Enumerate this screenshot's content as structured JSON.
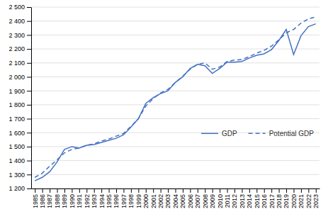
{
  "chart_data": {
    "type": "line",
    "x": [
      1985,
      1986,
      1987,
      1988,
      1989,
      1990,
      1991,
      1992,
      1993,
      1994,
      1995,
      1996,
      1997,
      1998,
      1999,
      2000,
      2001,
      2002,
      2003,
      2004,
      2005,
      2006,
      2007,
      2008,
      2009,
      2010,
      2011,
      2012,
      2013,
      2014,
      2015,
      2016,
      2017,
      2018,
      2019,
      2020,
      2021,
      2022,
      2023
    ],
    "series": [
      {
        "name": "GDP",
        "color": "#4472c4",
        "line_style": "solid",
        "values": [
          1255,
          1280,
          1320,
          1390,
          1480,
          1500,
          1490,
          1510,
          1515,
          1530,
          1545,
          1560,
          1585,
          1640,
          1700,
          1810,
          1850,
          1880,
          1900,
          1960,
          2000,
          2060,
          2090,
          2080,
          2025,
          2060,
          2105,
          2105,
          2110,
          2135,
          2155,
          2165,
          2195,
          2260,
          2340,
          2160,
          2295,
          2360,
          2380
        ]
      },
      {
        "name": "Potential GDP",
        "color": "#4472c4",
        "line_style": "dashed",
        "values": [
          1280,
          1310,
          1360,
          1405,
          1455,
          1480,
          1490,
          1510,
          1520,
          1540,
          1555,
          1575,
          1595,
          1645,
          1700,
          1790,
          1845,
          1885,
          1910,
          1960,
          2005,
          2055,
          2090,
          2100,
          2055,
          2070,
          2110,
          2120,
          2125,
          2145,
          2170,
          2190,
          2220,
          2265,
          2315,
          2340,
          2385,
          2415,
          2430
        ]
      }
    ],
    "xlim": [
      1984.5,
      2023.5
    ],
    "xticks": [
      1985,
      1986,
      1987,
      1988,
      1989,
      1990,
      1991,
      1992,
      1993,
      1994,
      1995,
      1996,
      1997,
      1998,
      1999,
      2000,
      2001,
      2002,
      2003,
      2004,
      2005,
      2006,
      2007,
      2008,
      2009,
      2010,
      2011,
      2012,
      2013,
      2014,
      2015,
      2016,
      2017,
      2018,
      2019,
      2020,
      2021,
      2022,
      2023
    ],
    "ylim": [
      1200,
      2500
    ],
    "yticks": [
      {
        "value": 1200,
        "label": "1 200"
      },
      {
        "value": 1300,
        "label": "1 300"
      },
      {
        "value": 1400,
        "label": "1 400"
      },
      {
        "value": 1500,
        "label": "1 500"
      },
      {
        "value": 1600,
        "label": "1 600"
      },
      {
        "value": 1700,
        "label": "1 700"
      },
      {
        "value": 1800,
        "label": "1 800"
      },
      {
        "value": 1900,
        "label": "1 900"
      },
      {
        "value": 2000,
        "label": "2 000"
      },
      {
        "value": 2100,
        "label": "2 100"
      },
      {
        "value": 2200,
        "label": "2 200"
      },
      {
        "value": 2300,
        "label": "2 300"
      },
      {
        "value": 2400,
        "label": "2 400"
      },
      {
        "value": 2500,
        "label": "2 500"
      }
    ],
    "grid": true,
    "legend": "lower right"
  }
}
